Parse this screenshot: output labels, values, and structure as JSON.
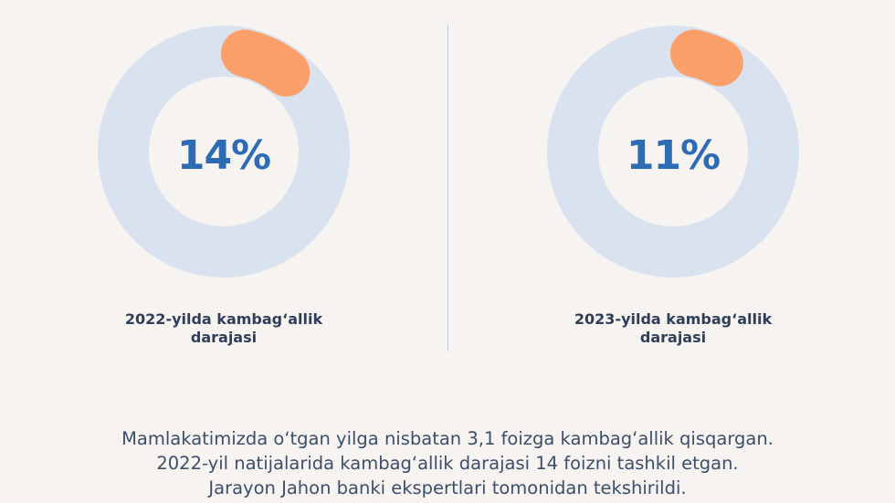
{
  "chart_data": [
    {
      "type": "pie",
      "values": [
        14,
        86
      ],
      "value_label": "14%",
      "caption_line1": "2022-yilda kambag‘allik",
      "caption_line2": "darajasi",
      "colors": {
        "track": "#d9e3ef",
        "highlight": "#fba06a",
        "text": "#2d6cb5"
      }
    },
    {
      "type": "pie",
      "values": [
        11,
        89
      ],
      "value_label": "11%",
      "caption_line1": "2023-yilda kambag‘allik",
      "caption_line2": "darajasi",
      "colors": {
        "track": "#d9e3ef",
        "highlight": "#fba06a",
        "text": "#2d6cb5"
      }
    }
  ],
  "footer": {
    "line1": "Mamlakatimizda o‘tgan yilga nisbatan 3,1 foizga kambag‘allik qisqargan.",
    "line2": "2022-yil natijalarida kambag‘allik darajasi 14 foizni tashkil etgan.",
    "line3": "Jarayon Jahon banki ekspertlari tomonidan tekshirildi."
  }
}
